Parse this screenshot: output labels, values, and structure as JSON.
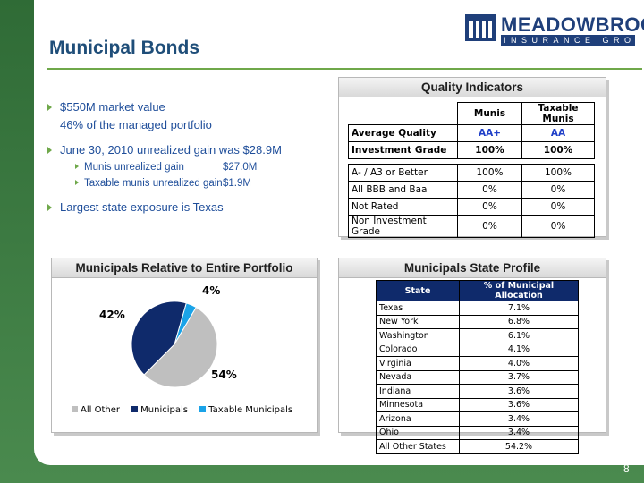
{
  "header": {
    "title": "Municipal Bonds",
    "logo_name": "MEADOWBROOK",
    "logo_sub": "INSURANCE GROUP"
  },
  "bullets": [
    {
      "text": "$550M market value"
    },
    {
      "text": "46% of the managed portfolio"
    },
    {
      "text": "June 30, 2010 unrealized gain was $28.9M"
    },
    {
      "sub": [
        {
          "label": "Munis unrealized gain",
          "value": "$27.0M"
        },
        {
          "label": "Taxable munis unrealized gain",
          "value": "$1.9M"
        }
      ]
    },
    {
      "text": "Largest state exposure is Texas"
    }
  ],
  "quality": {
    "title": "Quality Indicators",
    "col1": "Munis",
    "col2": "Taxable Munis",
    "rows_top": [
      {
        "label": "Average Quality",
        "a": "AA+",
        "b": "AA"
      },
      {
        "label": "Investment Grade",
        "a": "100%",
        "b": "100%"
      }
    ],
    "rows_bottom": [
      {
        "label": "A- / A3 or Better",
        "a": "100%",
        "b": "100%"
      },
      {
        "label": "All BBB and Baa",
        "a": "0%",
        "b": "0%"
      },
      {
        "label": "Not Rated",
        "a": "0%",
        "b": "0%"
      },
      {
        "label": "Non Investment Grade",
        "a": "0%",
        "b": "0%"
      }
    ]
  },
  "portfolio": {
    "title": "Municipals Relative to Entire Portfolio"
  },
  "chart_data": {
    "type": "pie",
    "categories": [
      "All Other",
      "Municipals",
      "Taxable Municipals"
    ],
    "values": [
      54,
      42,
      4
    ],
    "labels": [
      "54%",
      "42%",
      "4%"
    ],
    "colors": [
      "#bfbfbf",
      "#0f2a6b",
      "#1aa3e8"
    ],
    "legend": "bottom"
  },
  "state_profile": {
    "title": "Municipals State Profile",
    "col_state": "State",
    "col_pct": "% of Municipal Allocation",
    "rows": [
      {
        "state": "Texas",
        "pct": "7.1%"
      },
      {
        "state": "New York",
        "pct": "6.8%"
      },
      {
        "state": "Washington",
        "pct": "6.1%"
      },
      {
        "state": "Colorado",
        "pct": "4.1%"
      },
      {
        "state": "Virginia",
        "pct": "4.0%"
      },
      {
        "state": "Nevada",
        "pct": "3.7%"
      },
      {
        "state": "Indiana",
        "pct": "3.6%"
      },
      {
        "state": "Minnesota",
        "pct": "3.6%"
      },
      {
        "state": "Arizona",
        "pct": "3.4%"
      },
      {
        "state": "Ohio",
        "pct": "3.4%"
      },
      {
        "state": "All Other States",
        "pct": "54.2%"
      }
    ]
  },
  "footer": {
    "page": "8"
  },
  "colors": {
    "accent_green": "#6fa84a",
    "navy": "#0f2a6b",
    "text_blue": "#1f4e9a"
  }
}
